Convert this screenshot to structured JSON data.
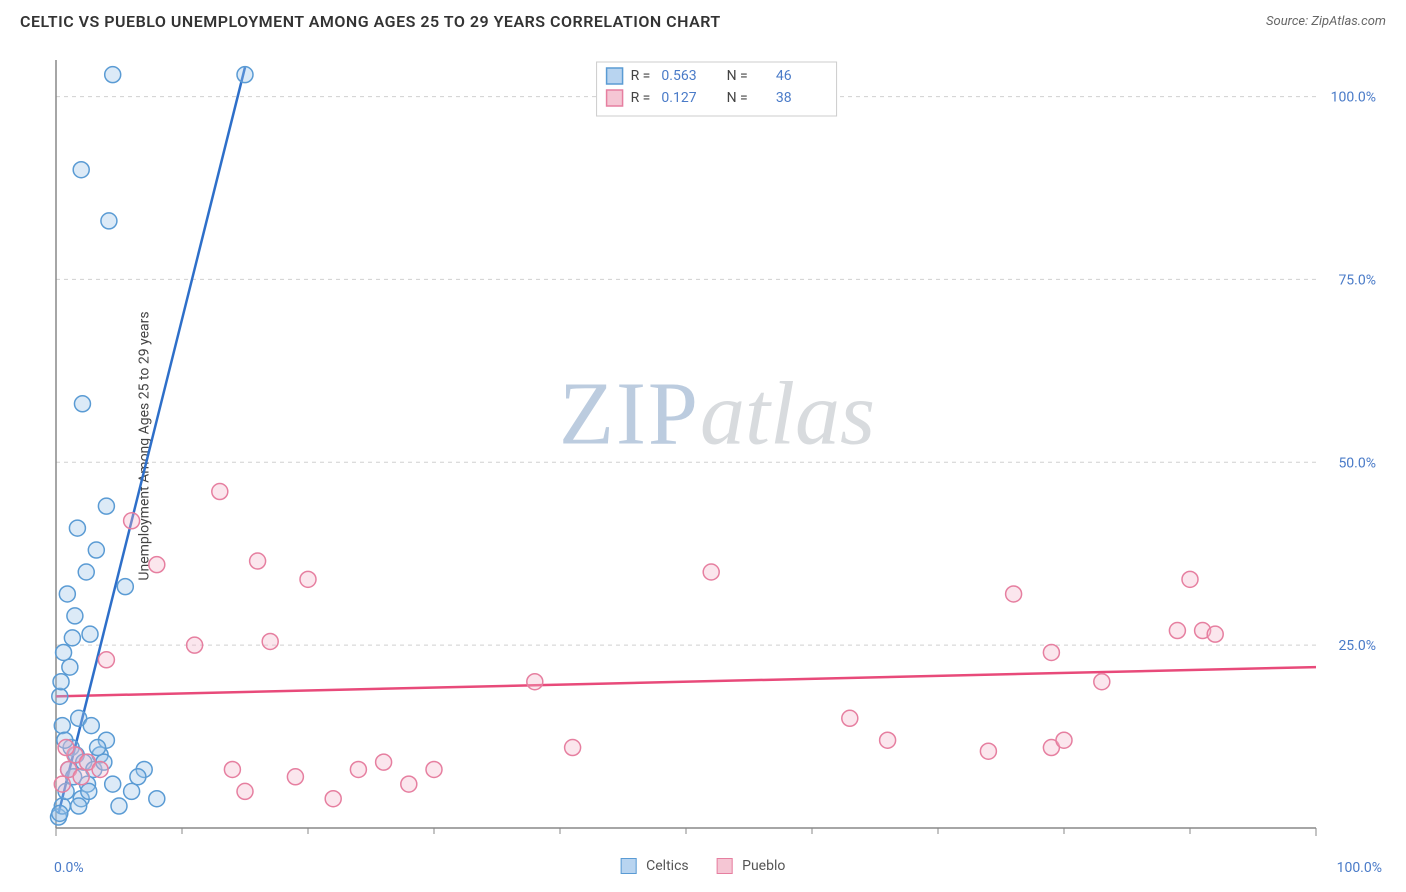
{
  "title": "CELTIC VS PUEBLO UNEMPLOYMENT AMONG AGES 25 TO 29 YEARS CORRELATION CHART",
  "source": "Source: ZipAtlas.com",
  "y_label": "Unemployment Among Ages 25 to 29 years",
  "watermark_a": "ZIP",
  "watermark_b": "atlas",
  "chart": {
    "type": "scatter",
    "xlim": [
      0,
      100
    ],
    "ylim": [
      0,
      105
    ],
    "x_ticks": [
      0,
      100
    ],
    "x_tick_labels": [
      "0.0%",
      "100.0%"
    ],
    "y_ticks": [
      25,
      50,
      75,
      100
    ],
    "y_tick_labels": [
      "25.0%",
      "50.0%",
      "75.0%",
      "100.0%"
    ],
    "x_minor_ticks": [
      10,
      20,
      30,
      40,
      50,
      60,
      70,
      80,
      90
    ],
    "grid_color": "#d0d0d0",
    "axis_color": "#888888",
    "background_color": "#ffffff",
    "marker_radius": 8,
    "marker_stroke_width": 1.5,
    "marker_fill_opacity": 0.35,
    "trend_stroke_width": 2.5,
    "series": [
      {
        "name": "Celtics",
        "swatch_fill": "#b8d4f0",
        "swatch_stroke": "#5a9bd4",
        "marker_fill": "#9cc4e8",
        "marker_stroke": "#5a9bd4",
        "trend_color": "#2e6fc9",
        "trend_line": {
          "x1": 0.2,
          "y1": 2,
          "x2": 15,
          "y2": 104
        },
        "R": "0.563",
        "N": "46",
        "points": [
          [
            0.2,
            1.5
          ],
          [
            0.5,
            3
          ],
          [
            0.8,
            5
          ],
          [
            1.0,
            8
          ],
          [
            1.2,
            11
          ],
          [
            0.5,
            14
          ],
          [
            1.4,
            7
          ],
          [
            1.6,
            10
          ],
          [
            1.8,
            15
          ],
          [
            0.3,
            18
          ],
          [
            2.0,
            4
          ],
          [
            2.2,
            9
          ],
          [
            0.7,
            12
          ],
          [
            2.5,
            6
          ],
          [
            0.4,
            20
          ],
          [
            3.0,
            8
          ],
          [
            1.1,
            22
          ],
          [
            3.5,
            10
          ],
          [
            0.6,
            24
          ],
          [
            4.0,
            12
          ],
          [
            1.3,
            26
          ],
          [
            2.8,
            14
          ],
          [
            5.0,
            3
          ],
          [
            6.0,
            5
          ],
          [
            1.5,
            29
          ],
          [
            0.9,
            32
          ],
          [
            7.0,
            8
          ],
          [
            2.4,
            35
          ],
          [
            8.0,
            4
          ],
          [
            3.2,
            38
          ],
          [
            1.7,
            41
          ],
          [
            4.5,
            6
          ],
          [
            2.1,
            58
          ],
          [
            5.5,
            33
          ],
          [
            2.7,
            26.5
          ],
          [
            3.8,
            9
          ],
          [
            6.5,
            7
          ],
          [
            4.0,
            44
          ],
          [
            4.2,
            83
          ],
          [
            2.0,
            90
          ],
          [
            4.5,
            103
          ],
          [
            15.0,
            103
          ],
          [
            0.3,
            2
          ],
          [
            1.8,
            3
          ],
          [
            2.6,
            5
          ],
          [
            3.3,
            11
          ]
        ]
      },
      {
        "name": "Pueblo",
        "swatch_fill": "#f5c6d4",
        "swatch_stroke": "#e67fa0",
        "marker_fill": "#f3b8ca",
        "marker_stroke": "#e67fa0",
        "trend_color": "#e84a7a",
        "trend_line": {
          "x1": 0,
          "y1": 18,
          "x2": 100,
          "y2": 22
        },
        "R": "0.127",
        "N": "38",
        "points": [
          [
            0.5,
            6
          ],
          [
            1.0,
            8
          ],
          [
            1.5,
            10
          ],
          [
            2.0,
            7
          ],
          [
            2.5,
            9
          ],
          [
            3.5,
            8
          ],
          [
            4.0,
            23
          ],
          [
            11,
            25
          ],
          [
            13,
            46
          ],
          [
            14,
            8
          ],
          [
            15,
            5
          ],
          [
            19,
            7
          ],
          [
            17,
            25.5
          ],
          [
            16,
            36.5
          ],
          [
            20,
            34
          ],
          [
            22,
            4
          ],
          [
            24,
            8
          ],
          [
            26,
            9
          ],
          [
            28,
            6
          ],
          [
            30,
            8
          ],
          [
            38,
            20
          ],
          [
            41,
            11
          ],
          [
            52,
            35
          ],
          [
            63,
            15
          ],
          [
            66,
            12
          ],
          [
            74,
            10.5
          ],
          [
            76,
            32
          ],
          [
            79,
            11
          ],
          [
            80,
            12
          ],
          [
            79,
            24
          ],
          [
            83,
            20
          ],
          [
            89,
            27
          ],
          [
            90,
            34
          ],
          [
            91,
            27
          ],
          [
            92,
            26.5
          ],
          [
            6,
            42
          ],
          [
            8,
            36
          ],
          [
            0.8,
            11
          ]
        ]
      }
    ],
    "legend": {
      "R_label": "R =",
      "N_label": "N ="
    }
  },
  "bottom_legend": {
    "series_a": "Celtics",
    "series_b": "Pueblo"
  }
}
